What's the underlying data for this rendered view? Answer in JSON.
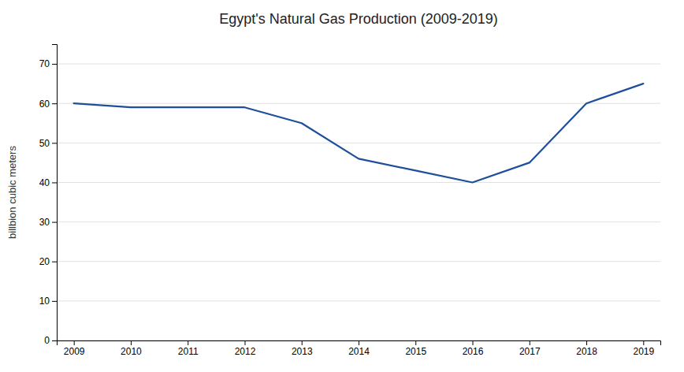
{
  "chart_data": {
    "type": "line",
    "title": "Egypt's Natural Gas Production (2009-2019)",
    "y_label": "billbion cubic meters",
    "x": [
      2009,
      2010,
      2011,
      2012,
      2013,
      2014,
      2015,
      2016,
      2017,
      2018,
      2019
    ],
    "values": [
      60,
      59,
      59,
      59,
      55,
      46,
      43,
      40,
      45,
      60,
      65
    ],
    "color": "#1F4E9A",
    "xlim": [
      2008.7,
      2019.3
    ],
    "xticks": [
      2009,
      2010,
      2011,
      2012,
      2013,
      2014,
      2015,
      2016,
      2017,
      2018,
      2019
    ],
    "ylim": [
      0,
      75
    ],
    "yticks": [
      0,
      10,
      20,
      30,
      40,
      50,
      60,
      70
    ],
    "grid": true
  }
}
